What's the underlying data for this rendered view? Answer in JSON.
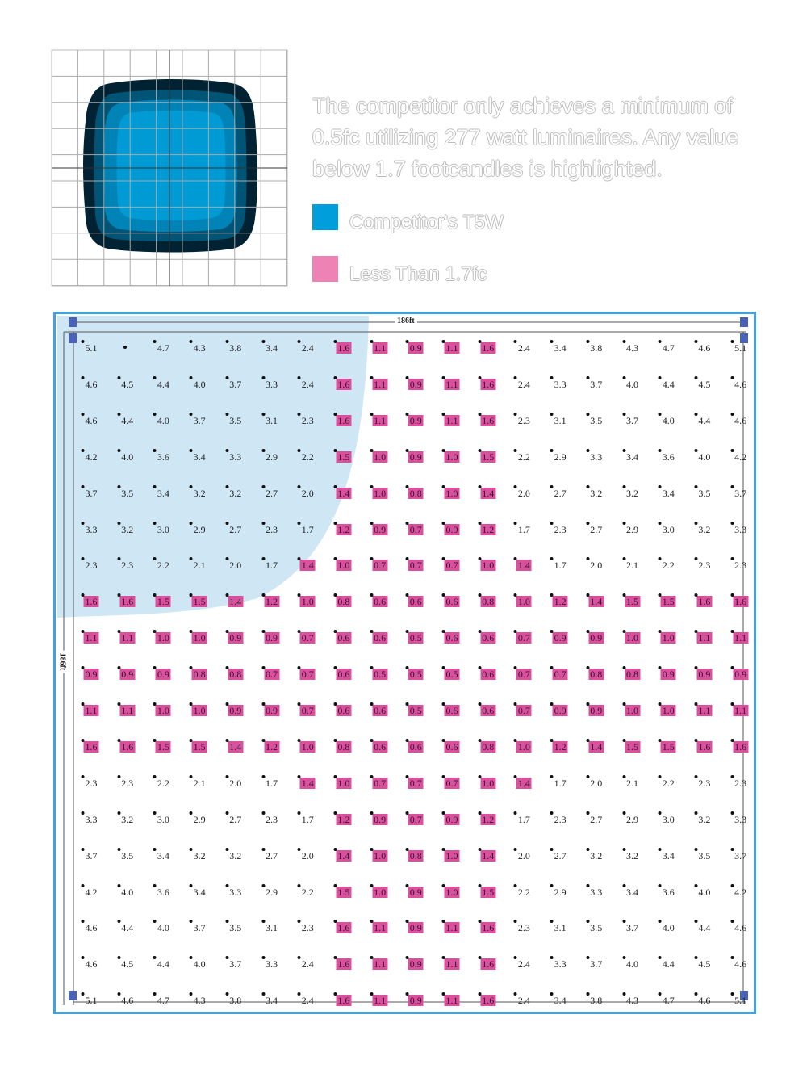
{
  "description": "The competitor only achieves a minimum of 0.5fc utilizing 277 watt luminaires. Any value below 1.7 footcandles is highlighted.",
  "legend": [
    {
      "label": "Competitor's T5W",
      "color": "#009fdb"
    },
    {
      "label": "Less Than 1.7fc",
      "color": "#ee82b4"
    }
  ],
  "plan": {
    "width_label": "186ft",
    "height_label": "186ft",
    "threshold": 1.7,
    "highlight_color": "#d9519c",
    "coverage_color": "#cfe6f5",
    "frame_color": "#41a2de",
    "rows": [
      [
        "5.1",
        "",
        "4.7",
        "4.3",
        "3.8",
        "3.4",
        "2.4",
        "1.6",
        "1.1",
        "0.9",
        "1.1",
        "1.6",
        "2.4",
        "3.4",
        "3.8",
        "4.3",
        "4.7",
        "4.6",
        "5.1"
      ],
      [
        "4.6",
        "4.5",
        "4.4",
        "4.0",
        "3.7",
        "3.3",
        "2.4",
        "1.6",
        "1.1",
        "0.9",
        "1.1",
        "1.6",
        "2.4",
        "3.3",
        "3.7",
        "4.0",
        "4.4",
        "4.5",
        "4.6"
      ],
      [
        "4.6",
        "4.4",
        "4.0",
        "3.7",
        "3.5",
        "3.1",
        "2.3",
        "1.6",
        "1.1",
        "0.9",
        "1.1",
        "1.6",
        "2.3",
        "3.1",
        "3.5",
        "3.7",
        "4.0",
        "4.4",
        "4.6"
      ],
      [
        "4.2",
        "4.0",
        "3.6",
        "3.4",
        "3.3",
        "2.9",
        "2.2",
        "1.5",
        "1.0",
        "0.9",
        "1.0",
        "1.5",
        "2.2",
        "2.9",
        "3.3",
        "3.4",
        "3.6",
        "4.0",
        "4.2"
      ],
      [
        "3.7",
        "3.5",
        "3.4",
        "3.2",
        "3.2",
        "2.7",
        "2.0",
        "1.4",
        "1.0",
        "0.8",
        "1.0",
        "1.4",
        "2.0",
        "2.7",
        "3.2",
        "3.2",
        "3.4",
        "3.5",
        "3.7"
      ],
      [
        "3.3",
        "3.2",
        "3.0",
        "2.9",
        "2.7",
        "2.3",
        "1.7",
        "1.2",
        "0.9",
        "0.7",
        "0.9",
        "1.2",
        "1.7",
        "2.3",
        "2.7",
        "2.9",
        "3.0",
        "3.2",
        "3.3"
      ],
      [
        "2.3",
        "2.3",
        "2.2",
        "2.1",
        "2.0",
        "1.7",
        "1.4",
        "1.0",
        "0.7",
        "0.7",
        "0.7",
        "1.0",
        "1.4",
        "1.7",
        "2.0",
        "2.1",
        "2.2",
        "2.3",
        "2.3"
      ],
      [
        "1.6",
        "1.6",
        "1.5",
        "1.5",
        "1.4",
        "1.2",
        "1.0",
        "0.8",
        "0.6",
        "0.6",
        "0.6",
        "0.8",
        "1.0",
        "1.2",
        "1.4",
        "1.5",
        "1.5",
        "1.6",
        "1.6"
      ],
      [
        "1.1",
        "1.1",
        "1.0",
        "1.0",
        "0.9",
        "0.9",
        "0.7",
        "0.6",
        "0.6",
        "0.5",
        "0.6",
        "0.6",
        "0.7",
        "0.9",
        "0.9",
        "1.0",
        "1.0",
        "1.1",
        "1.1"
      ],
      [
        "0.9",
        "0.9",
        "0.9",
        "0.8",
        "0.8",
        "0.7",
        "0.7",
        "0.6",
        "0.5",
        "0.5",
        "0.5",
        "0.6",
        "0.7",
        "0.7",
        "0.8",
        "0.8",
        "0.9",
        "0.9",
        "0.9"
      ],
      [
        "1.1",
        "1.1",
        "1.0",
        "1.0",
        "0.9",
        "0.9",
        "0.7",
        "0.6",
        "0.6",
        "0.5",
        "0.6",
        "0.6",
        "0.7",
        "0.9",
        "0.9",
        "1.0",
        "1.0",
        "1.1",
        "1.1"
      ],
      [
        "1.6",
        "1.6",
        "1.5",
        "1.5",
        "1.4",
        "1.2",
        "1.0",
        "0.8",
        "0.6",
        "0.6",
        "0.6",
        "0.8",
        "1.0",
        "1.2",
        "1.4",
        "1.5",
        "1.5",
        "1.6",
        "1.6"
      ],
      [
        "2.3",
        "2.3",
        "2.2",
        "2.1",
        "2.0",
        "1.7",
        "1.4",
        "1.0",
        "0.7",
        "0.7",
        "0.7",
        "1.0",
        "1.4",
        "1.7",
        "2.0",
        "2.1",
        "2.2",
        "2.3",
        "2.3"
      ],
      [
        "3.3",
        "3.2",
        "3.0",
        "2.9",
        "2.7",
        "2.3",
        "1.7",
        "1.2",
        "0.9",
        "0.7",
        "0.9",
        "1.2",
        "1.7",
        "2.3",
        "2.7",
        "2.9",
        "3.0",
        "3.2",
        "3.3"
      ],
      [
        "3.7",
        "3.5",
        "3.4",
        "3.2",
        "3.2",
        "2.7",
        "2.0",
        "1.4",
        "1.0",
        "0.8",
        "1.0",
        "1.4",
        "2.0",
        "2.7",
        "3.2",
        "3.2",
        "3.4",
        "3.5",
        "3.7"
      ],
      [
        "4.2",
        "4.0",
        "3.6",
        "3.4",
        "3.3",
        "2.9",
        "2.2",
        "1.5",
        "1.0",
        "0.9",
        "1.0",
        "1.5",
        "2.2",
        "2.9",
        "3.3",
        "3.4",
        "3.6",
        "4.0",
        "4.2"
      ],
      [
        "4.6",
        "4.4",
        "4.0",
        "3.7",
        "3.5",
        "3.1",
        "2.3",
        "1.6",
        "1.1",
        "0.9",
        "1.1",
        "1.6",
        "2.3",
        "3.1",
        "3.5",
        "3.7",
        "4.0",
        "4.4",
        "4.6"
      ],
      [
        "4.6",
        "4.5",
        "4.4",
        "4.0",
        "3.7",
        "3.3",
        "2.4",
        "1.6",
        "1.1",
        "0.9",
        "1.1",
        "1.6",
        "2.4",
        "3.3",
        "3.7",
        "4.0",
        "4.4",
        "4.5",
        "4.6"
      ],
      [
        "5.1",
        "4.6",
        "4.7",
        "4.3",
        "3.8",
        "3.4",
        "2.4",
        "1.6",
        "1.1",
        "0.9",
        "1.1",
        "1.6",
        "2.4",
        "3.4",
        "3.8",
        "4.3",
        "4.7",
        "4.6",
        "5.1"
      ]
    ]
  }
}
